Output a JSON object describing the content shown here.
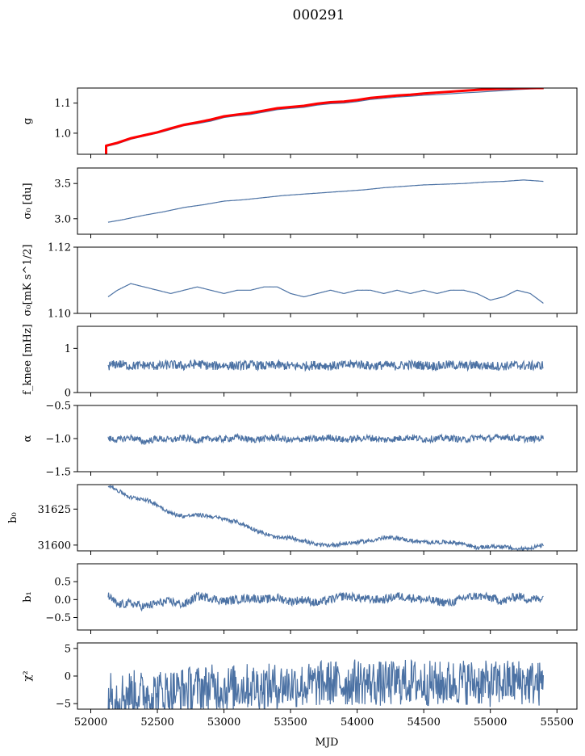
{
  "figure": {
    "title": "000291",
    "xlabel": "MJD"
  },
  "colors": {
    "series": "#4c72a4",
    "model": "#ff0000"
  },
  "chart_data": [
    {
      "type": "line",
      "id": "g",
      "ylabel": "g",
      "ylim": [
        0.93,
        1.15
      ],
      "yticks": [
        1.0,
        1.1
      ],
      "ytick_labels": [
        "1.0",
        "1.1"
      ],
      "xlim": [
        51900,
        55650
      ],
      "series": [
        {
          "role": "data",
          "x": [
            52110,
            52200,
            52300,
            52400,
            52500,
            52600,
            52700,
            52800,
            52900,
            53000,
            53100,
            53200,
            53300,
            53400,
            53500,
            53600,
            53700,
            53800,
            53900,
            54000,
            54100,
            54200,
            54300,
            54400,
            54500,
            54600,
            54700,
            54800,
            54900,
            55000,
            55100,
            55200,
            55300,
            55400
          ],
          "y": [
            0.955,
            0.965,
            0.98,
            0.99,
            1.0,
            1.012,
            1.025,
            1.032,
            1.04,
            1.052,
            1.058,
            1.062,
            1.07,
            1.078,
            1.082,
            1.086,
            1.093,
            1.098,
            1.1,
            1.105,
            1.112,
            1.116,
            1.12,
            1.123,
            1.126,
            1.128,
            1.131,
            1.134,
            1.136,
            1.139,
            1.142,
            1.145,
            1.147,
            1.148
          ]
        },
        {
          "role": "model",
          "x": [
            52110,
            52200,
            52300,
            52400,
            52500,
            52600,
            52700,
            52800,
            52900,
            53000,
            53100,
            53200,
            53300,
            53400,
            53500,
            53600,
            53700,
            53800,
            53900,
            54000,
            54100,
            54200,
            54300,
            54400,
            54500,
            54600,
            54700,
            54800,
            54900,
            55000,
            55100,
            55200,
            55300,
            55400
          ],
          "y": [
            0.958,
            0.968,
            0.983,
            0.993,
            1.003,
            1.016,
            1.028,
            1.036,
            1.045,
            1.056,
            1.062,
            1.067,
            1.075,
            1.083,
            1.087,
            1.091,
            1.098,
            1.103,
            1.105,
            1.11,
            1.117,
            1.121,
            1.125,
            1.128,
            1.132,
            1.135,
            1.138,
            1.141,
            1.144,
            1.146,
            1.148,
            1.149,
            1.15,
            1.15
          ]
        }
      ],
      "spike": {
        "x": 52115,
        "y_from": 0.93,
        "y_to": 0.96
      }
    },
    {
      "type": "line",
      "id": "sigma0_du",
      "ylabel": "σ₀ [du]",
      "ylim": [
        2.78,
        3.72
      ],
      "yticks": [
        3.0,
        3.5
      ],
      "ytick_labels": [
        "3.0",
        "3.5"
      ],
      "xlim": [
        51900,
        55650
      ],
      "series": [
        {
          "role": "data",
          "x": [
            52130,
            52250,
            52400,
            52550,
            52700,
            52850,
            53000,
            53150,
            53300,
            53450,
            53600,
            53750,
            53900,
            54050,
            54200,
            54350,
            54500,
            54650,
            54800,
            54950,
            55100,
            55250,
            55400
          ],
          "y": [
            2.95,
            2.99,
            3.05,
            3.1,
            3.16,
            3.2,
            3.25,
            3.27,
            3.3,
            3.33,
            3.35,
            3.37,
            3.39,
            3.41,
            3.44,
            3.46,
            3.48,
            3.49,
            3.5,
            3.52,
            3.53,
            3.55,
            3.53
          ]
        }
      ]
    },
    {
      "type": "line",
      "id": "sigma0_mk",
      "ylabel": "σ₀[mK s^1/2]",
      "ylim": [
        1.1,
        1.12
      ],
      "yticks": [
        1.1,
        1.12
      ],
      "ytick_labels": [
        "1.10",
        "1.12"
      ],
      "xlim": [
        51900,
        55650
      ],
      "series": [
        {
          "role": "data",
          "x": [
            52130,
            52200,
            52300,
            52400,
            52500,
            52600,
            52700,
            52800,
            52900,
            53000,
            53100,
            53200,
            53300,
            53400,
            53500,
            53600,
            53700,
            53800,
            53900,
            54000,
            54100,
            54200,
            54300,
            54400,
            54500,
            54600,
            54700,
            54800,
            54900,
            55000,
            55100,
            55200,
            55300,
            55400
          ],
          "y": [
            1.105,
            1.107,
            1.109,
            1.108,
            1.107,
            1.106,
            1.107,
            1.108,
            1.107,
            1.106,
            1.107,
            1.107,
            1.108,
            1.108,
            1.106,
            1.105,
            1.106,
            1.107,
            1.106,
            1.107,
            1.107,
            1.106,
            1.107,
            1.106,
            1.107,
            1.106,
            1.107,
            1.107,
            1.106,
            1.104,
            1.105,
            1.107,
            1.106,
            1.103
          ]
        }
      ]
    },
    {
      "type": "line",
      "id": "fknee",
      "ylabel": "f_knee [mHz]",
      "ylim": [
        0,
        1.5
      ],
      "yticks": [
        0,
        1
      ],
      "ytick_labels": [
        "0",
        "1"
      ],
      "xlim": [
        51900,
        55650
      ],
      "series": [
        {
          "role": "data",
          "x": [
            52130,
            52200,
            52300,
            52400,
            52500,
            52600,
            52700,
            52800,
            52900,
            53000,
            53100,
            53200,
            53300,
            53400,
            53500,
            53600,
            53700,
            53800,
            53900,
            54000,
            54100,
            54200,
            54300,
            54400,
            54500,
            54600,
            54700,
            54800,
            54900,
            55000,
            55100,
            55200,
            55300,
            55400
          ],
          "y": [
            0.6,
            0.65,
            0.6,
            0.62,
            0.6,
            0.63,
            0.6,
            0.65,
            0.6,
            0.62,
            0.6,
            0.63,
            0.6,
            0.62,
            0.6,
            0.6,
            0.63,
            0.6,
            0.62,
            0.65,
            0.6,
            0.62,
            0.6,
            0.63,
            0.62,
            0.6,
            0.63,
            0.6,
            0.62,
            0.6,
            0.6,
            0.62,
            0.6,
            0.62
          ]
        }
      ]
    },
    {
      "type": "line",
      "id": "alpha",
      "ylabel": "α",
      "ylim": [
        -1.5,
        -0.5
      ],
      "yticks": [
        -1.5,
        -1.0,
        -0.5
      ],
      "ytick_labels": [
        "−1.5",
        "−1.0",
        "−0.5"
      ],
      "xlim": [
        51900,
        55650
      ],
      "series": [
        {
          "role": "data",
          "x": [
            52130,
            52200,
            52300,
            52400,
            52500,
            52600,
            52700,
            52800,
            52900,
            53000,
            53100,
            53200,
            53300,
            53400,
            53500,
            53600,
            53700,
            53800,
            53900,
            54000,
            54100,
            54200,
            54300,
            54400,
            54500,
            54600,
            54700,
            54800,
            54900,
            55000,
            55100,
            55200,
            55300,
            55400
          ],
          "y": [
            -1.0,
            -1.02,
            -0.98,
            -1.05,
            -1.0,
            -1.02,
            -0.99,
            -1.03,
            -1.0,
            -1.01,
            -0.98,
            -1.02,
            -1.0,
            -0.99,
            -1.03,
            -1.0,
            -1.01,
            -0.98,
            -1.02,
            -1.0,
            -0.99,
            -1.02,
            -1.0,
            -0.98,
            -1.01,
            -1.0,
            -0.99,
            -1.02,
            -0.98,
            -1.0,
            -0.97,
            -1.0,
            -1.01,
            -0.99
          ]
        }
      ]
    },
    {
      "type": "line",
      "id": "b0",
      "ylabel": "b₀",
      "ylim": [
        31596,
        31642
      ],
      "yticks": [
        31600,
        31625
      ],
      "ytick_labels": [
        "31600",
        "31625"
      ],
      "xlim": [
        51900,
        55650
      ],
      "series": [
        {
          "role": "data",
          "x": [
            52130,
            52200,
            52300,
            52400,
            52500,
            52600,
            52700,
            52800,
            52900,
            53000,
            53100,
            53200,
            53300,
            53400,
            53500,
            53600,
            53700,
            53800,
            53900,
            54000,
            54100,
            54200,
            54300,
            54400,
            54500,
            54600,
            54700,
            54800,
            54900,
            55000,
            55100,
            55200,
            55300,
            55400
          ],
          "y": [
            31642,
            31638,
            31633,
            31632,
            31628,
            31622,
            31620,
            31621,
            31620,
            31618,
            31616,
            31612,
            31608,
            31605,
            31605,
            31603,
            31600,
            31600,
            31601,
            31602,
            31603,
            31605,
            31605,
            31603,
            31602,
            31602,
            31602,
            31601,
            31598,
            31599,
            31599,
            31597,
            31598,
            31600
          ]
        }
      ]
    },
    {
      "type": "line",
      "id": "b1",
      "ylabel": "b₁",
      "ylim": [
        -0.85,
        1.0
      ],
      "yticks": [
        -0.5,
        0.0,
        0.5
      ],
      "ytick_labels": [
        "−0.5",
        "0.0",
        "0.5"
      ],
      "xlim": [
        51900,
        55650
      ],
      "series": [
        {
          "role": "data",
          "x": [
            52130,
            52200,
            52300,
            52400,
            52500,
            52600,
            52700,
            52800,
            52900,
            53000,
            53100,
            53200,
            53300,
            53400,
            53500,
            53600,
            53700,
            53800,
            53900,
            54000,
            54100,
            54200,
            54300,
            54400,
            54500,
            54600,
            54700,
            54800,
            54900,
            55000,
            55100,
            55200,
            55300,
            55400
          ],
          "y": [
            0.1,
            -0.15,
            -0.1,
            -0.2,
            -0.1,
            -0.05,
            -0.15,
            0.1,
            0.05,
            -0.05,
            0.0,
            0.05,
            0.0,
            0.05,
            -0.05,
            0.0,
            -0.1,
            0.0,
            0.1,
            0.05,
            0.0,
            0.0,
            0.1,
            0.05,
            0.0,
            -0.05,
            -0.1,
            0.05,
            0.1,
            0.05,
            -0.05,
            0.1,
            0.0,
            0.05
          ]
        }
      ]
    },
    {
      "type": "line",
      "id": "chi2",
      "ylabel": "χ²",
      "ylim": [
        -6,
        6
      ],
      "yticks": [
        -5,
        0,
        5
      ],
      "ytick_labels": [
        "−5",
        "0",
        "5"
      ],
      "xtick_labels": [
        "52000",
        "52500",
        "53000",
        "53500",
        "54000",
        "54500",
        "55000",
        "55500"
      ],
      "xticks": [
        52000,
        52500,
        53000,
        53500,
        54000,
        54500,
        55000,
        55500
      ],
      "xlim": [
        51900,
        55650
      ],
      "series": [
        {
          "role": "data",
          "x": [
            52130,
            52200,
            52300,
            52400,
            52500,
            52600,
            52700,
            52800,
            52900,
            53000,
            53100,
            53200,
            53300,
            53400,
            53500,
            53600,
            53700,
            53800,
            53900,
            54000,
            54100,
            54200,
            54300,
            54400,
            54500,
            54600,
            54700,
            54800,
            54900,
            55000,
            55100,
            55200,
            55300,
            55400
          ],
          "y": [
            -3.0,
            -3.5,
            -3.0,
            -3.2,
            -3.0,
            -2.8,
            -2.5,
            -2.2,
            -2.0,
            -2.2,
            -2.0,
            -1.8,
            -2.0,
            -1.8,
            -1.5,
            -1.8,
            -1.5,
            -1.2,
            -1.5,
            -1.0,
            -1.2,
            -1.5,
            -1.2,
            -1.0,
            -1.2,
            -1.5,
            -1.2,
            -1.0,
            -1.2,
            -1.5,
            -1.2,
            -1.0,
            -1.2,
            -1.5
          ]
        }
      ]
    }
  ]
}
